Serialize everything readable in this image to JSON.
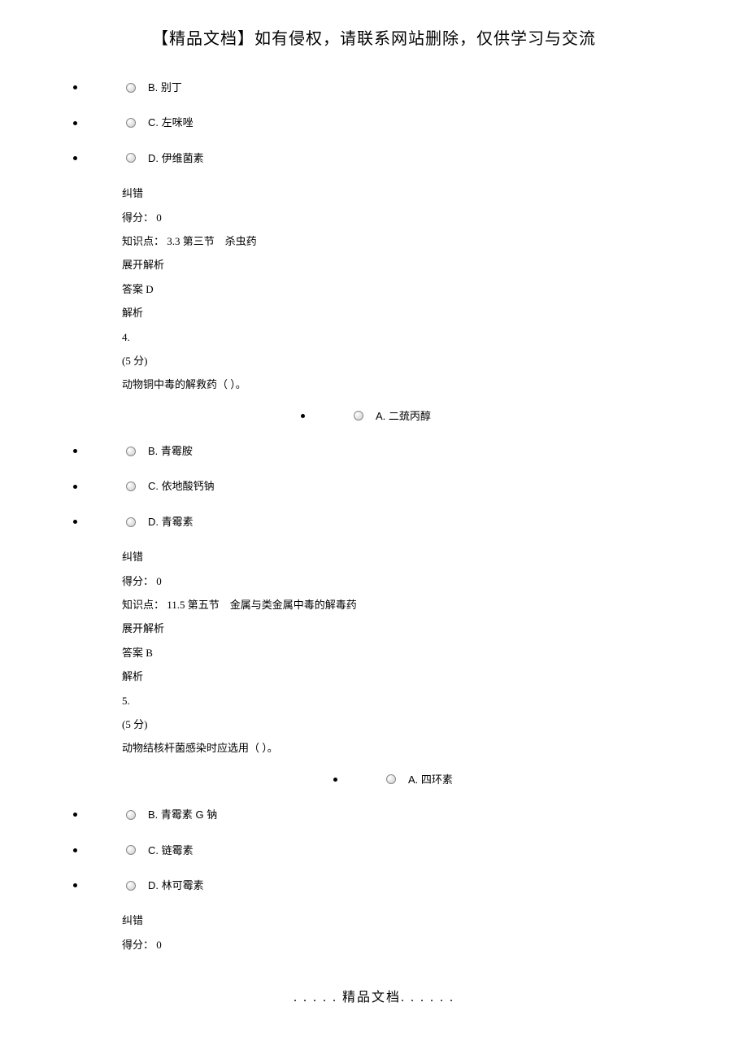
{
  "header": {
    "title": "【精品文档】如有侵权，请联系网站删除，仅供学习与交流"
  },
  "q3_options": {
    "b": "B. 别丁",
    "c": "C. 左咪唑",
    "d": "D. 伊维菌素"
  },
  "q3_answer": {
    "correction": "纠错",
    "score_label": "得分： 0",
    "knowledge": "知识点： 3.3 第三节　杀虫药",
    "expand": "展开解析",
    "answer_label": "答案 D",
    "analysis_label": "解析"
  },
  "q4": {
    "number": "4.",
    "points": "(5 分)",
    "question": "动物铜中毒的解救药（ ）。",
    "option_a": "A. 二巯丙醇",
    "option_b": "B. 青霉胺",
    "option_c": "C. 依地酸钙钠",
    "option_d": "D. 青霉素"
  },
  "q4_answer": {
    "correction": "纠错",
    "score_label": "得分： 0",
    "knowledge": "知识点： 11.5 第五节　金属与类金属中毒的解毒药",
    "expand": "展开解析",
    "answer_label": "答案 B",
    "analysis_label": "解析"
  },
  "q5": {
    "number": "5.",
    "points": "(5 分)",
    "question": "动物结核杆菌感染时应选用（ ）。",
    "option_a": "A. 四环素",
    "option_b": "B. 青霉素 G 钠",
    "option_c": "C. 链霉素",
    "option_d": "D. 林可霉素"
  },
  "q5_answer": {
    "correction": "纠错",
    "score_label": "得分： 0"
  },
  "footer": {
    "text": ". . . . . 精品文档. . . . . ."
  }
}
